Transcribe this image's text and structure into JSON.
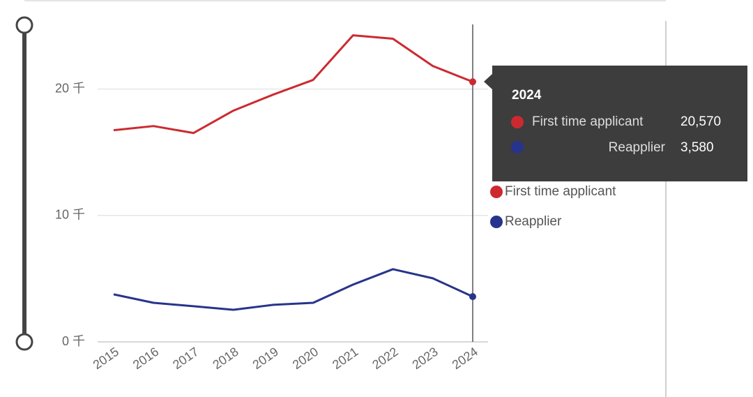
{
  "chart_data": {
    "type": "line",
    "categories": [
      "2015",
      "2016",
      "2017",
      "2018",
      "2019",
      "2020",
      "2021",
      "2022",
      "2023",
      "2024"
    ],
    "series": [
      {
        "name": "First time applicant",
        "color": "#cc2a30",
        "values": [
          16740,
          17070,
          16520,
          18290,
          19560,
          20720,
          24250,
          23980,
          21820,
          20570
        ]
      },
      {
        "name": "Reapplier",
        "color": "#27348b",
        "values": [
          3760,
          3090,
          2820,
          2540,
          2930,
          3090,
          4530,
          5750,
          5030,
          3580
        ]
      }
    ],
    "ylim": [
      0,
      25000
    ],
    "yticks": [
      {
        "value": 0,
        "label": "0 千"
      },
      {
        "value": 10000,
        "label": "10 千"
      },
      {
        "value": 20000,
        "label": "20 千"
      }
    ],
    "grid": true
  },
  "tooltip": {
    "title": "2024",
    "items": [
      {
        "name": "First time applicant",
        "label": "20,570"
      },
      {
        "name": "Reapplier",
        "label": "3,580"
      }
    ]
  }
}
